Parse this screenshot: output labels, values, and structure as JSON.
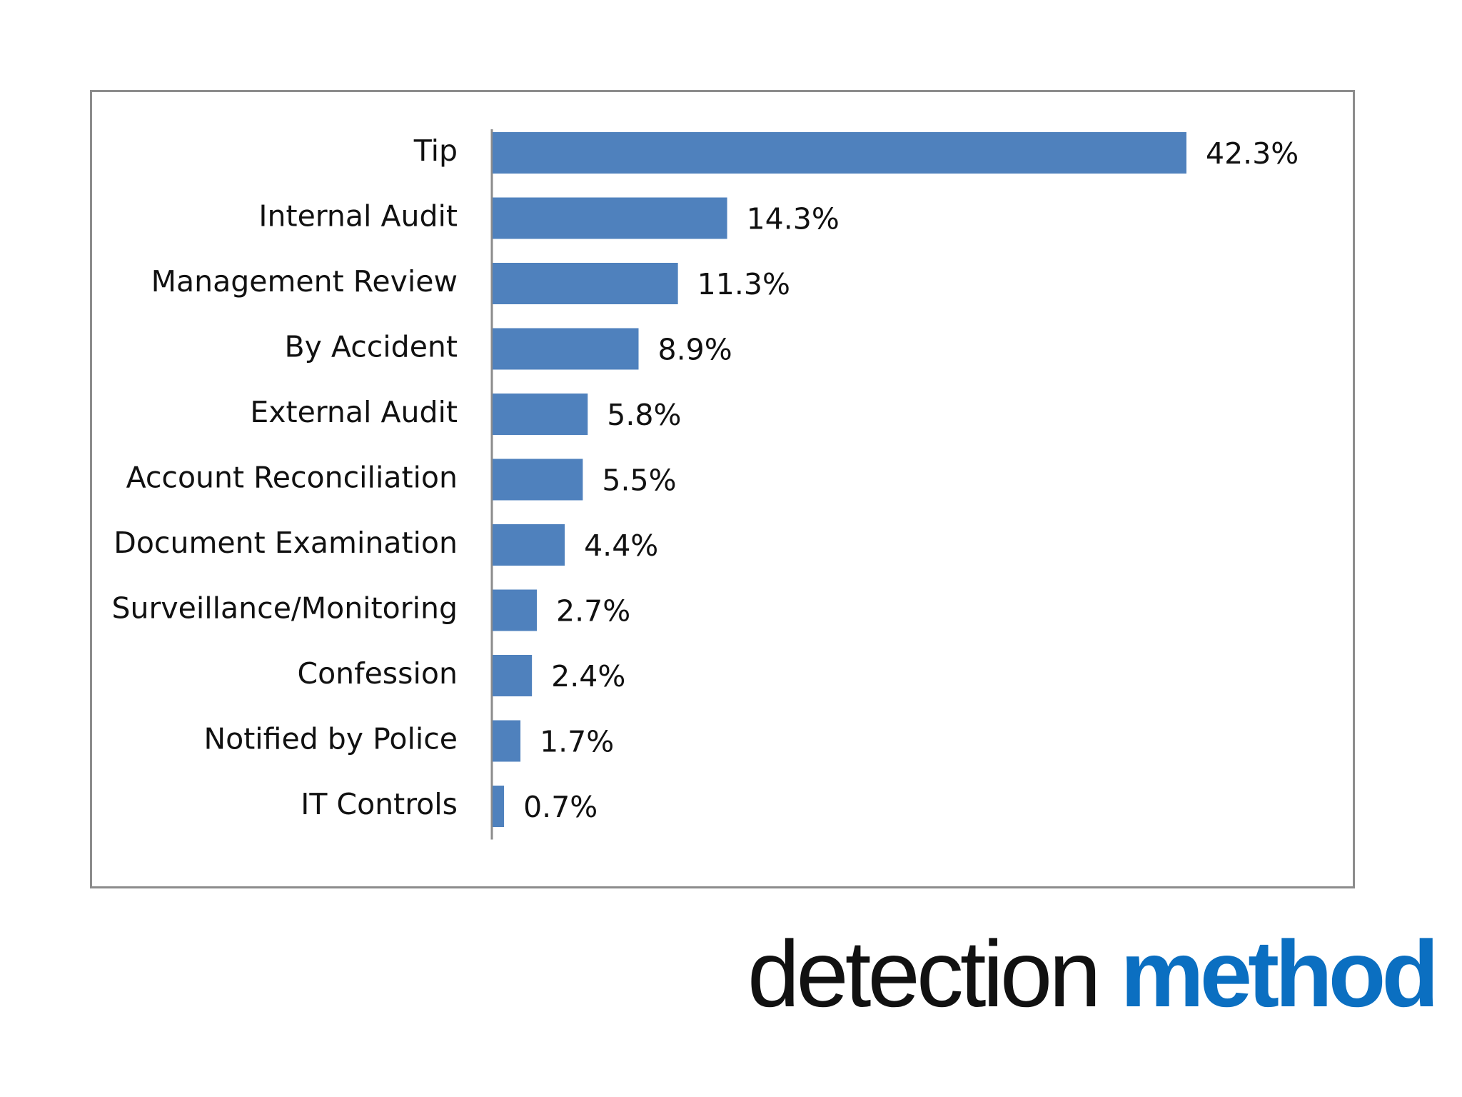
{
  "chart_data": {
    "type": "bar",
    "orientation": "horizontal",
    "categories": [
      "Tip",
      "Internal Audit",
      "Management Review",
      "By Accident",
      "External Audit",
      "Account Reconciliation",
      "Document Examination",
      "Surveillance/Monitoring",
      "Confession",
      "Notified by Police",
      "IT Controls"
    ],
    "values": [
      42.3,
      14.3,
      11.3,
      8.9,
      5.8,
      5.5,
      4.4,
      2.7,
      2.4,
      1.7,
      0.7
    ],
    "data_labels": [
      "42.3%",
      "14.3%",
      "11.3%",
      "8.9%",
      "5.8%",
      "5.5%",
      "4.4%",
      "2.7%",
      "2.4%",
      "1.7%",
      "0.7%"
    ],
    "title": "",
    "xlabel": "",
    "ylabel": "",
    "xlim": [
      0,
      42.3
    ],
    "grid": false,
    "legend": "none",
    "bar_color": "#4f81bd"
  },
  "slide_title": {
    "light": "detection",
    "bold": "method",
    "bold_color": "#0b6fc1"
  }
}
